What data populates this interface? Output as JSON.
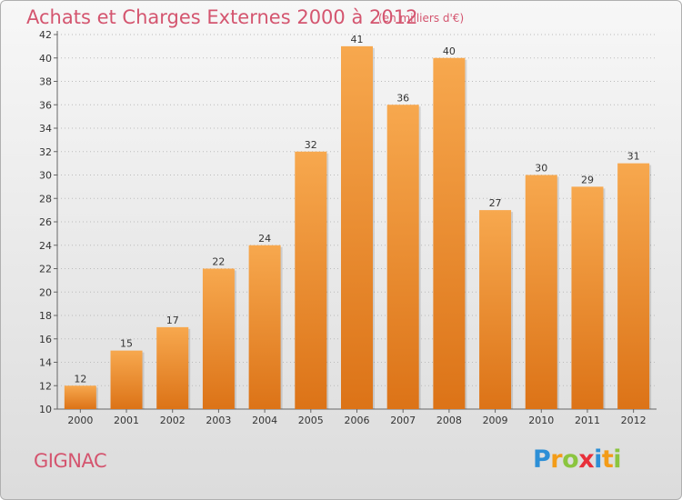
{
  "chart_data": {
    "type": "bar",
    "title": "Achats et Charges Externes 2000 à 2012",
    "subtitle": "(en milliers d'€)",
    "categories": [
      "2000",
      "2001",
      "2002",
      "2003",
      "2004",
      "2005",
      "2006",
      "2007",
      "2008",
      "2009",
      "2010",
      "2011",
      "2012"
    ],
    "values": [
      12,
      15,
      17,
      22,
      24,
      32,
      41,
      36,
      40,
      27,
      30,
      29,
      31
    ],
    "xlabel": "",
    "ylabel": "",
    "ylim": [
      10,
      42
    ],
    "yticks": [
      10,
      12,
      14,
      16,
      18,
      20,
      22,
      24,
      26,
      28,
      30,
      32,
      34,
      36,
      38,
      40,
      42
    ],
    "grid": true,
    "legend": "none",
    "bar_color_top": "#f7a84e",
    "bar_color_bottom": "#dc7317"
  },
  "location": "GIGNAC",
  "brand": {
    "letters": [
      "P",
      "r",
      "o",
      "x",
      "i",
      "t",
      "i"
    ],
    "colors": [
      "#2d8fd6",
      "#f39c18",
      "#8bc53f",
      "#e8303a",
      "#2d8fd6",
      "#f39c18",
      "#8bc53f"
    ]
  },
  "colors": {
    "title": "#d4556f",
    "axis": "#666666",
    "grid": "#bbbbbb"
  }
}
